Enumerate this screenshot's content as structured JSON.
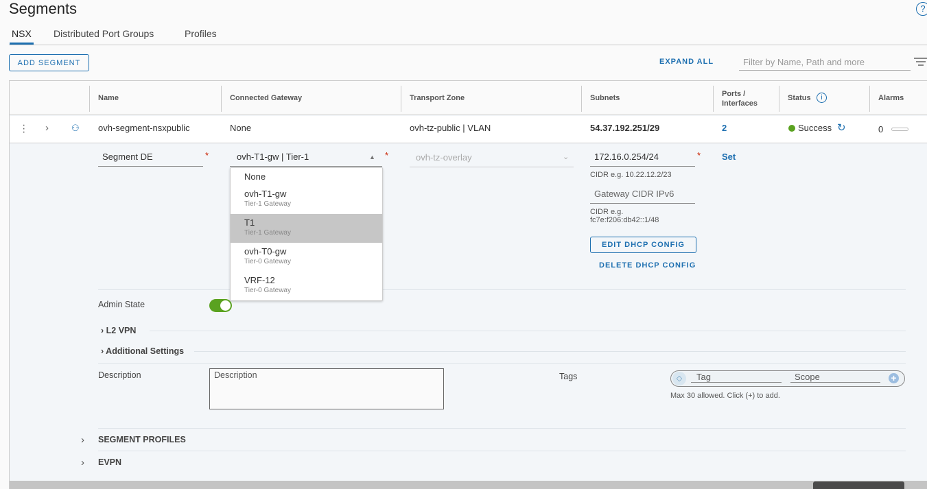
{
  "page": {
    "title": "Segments",
    "help_icon": "help-circle-icon"
  },
  "tabs": [
    {
      "label": "NSX",
      "active": true
    },
    {
      "label": "Distributed Port Groups"
    },
    {
      "label": "Profiles"
    }
  ],
  "toolbar": {
    "add_segment": "ADD SEGMENT",
    "expand_all": "EXPAND ALL",
    "filter_placeholder": "Filter by Name, Path and more"
  },
  "table": {
    "columns": [
      "Name",
      "Connected Gateway",
      "Transport Zone",
      "Subnets",
      "Ports / Interfaces",
      "Status",
      "Alarms"
    ],
    "rows": [
      {
        "name": "ovh-segment-nsxpublic",
        "gateway": "None",
        "transport_zone": "ovh-tz-public | VLAN",
        "subnets": "54.37.192.251/29",
        "ports": "2",
        "status": "Success",
        "alarms": "0"
      }
    ]
  },
  "edit": {
    "name": "Segment DE",
    "gateway": "ovh-T1-gw | Tier-1",
    "transport_zone_placeholder": "ovh-tz-overlay",
    "subnet": "172.16.0.254/24",
    "subnet_hint": "CIDR e.g. 10.22.12.2/23",
    "ipv6_placeholder": "Gateway CIDR IPv6",
    "ipv6_hint_1": "CIDR e.g.",
    "ipv6_hint_2": "fc7e:f206:db42::1/48",
    "edit_dhcp": "EDIT DHCP CONFIG",
    "delete_dhcp": "DELETE DHCP CONFIG",
    "set": "Set",
    "required": "*",
    "admin_state_label": "Admin State",
    "admin_state": true,
    "l2vpn": "L2 VPN",
    "additional": "Additional Settings",
    "description_label": "Description",
    "description_placeholder": "Description",
    "tags_label": "Tags",
    "tag_placeholder": "Tag",
    "scope_placeholder": "Scope",
    "tags_hint": "Max 30 allowed. Click (+) to add.",
    "segment_profiles": "SEGMENT PROFILES",
    "evpn": "EVPN"
  },
  "dropdown": {
    "options": [
      {
        "name": "None",
        "type": ""
      },
      {
        "name": "ovh-T1-gw",
        "type": "Tier-1 Gateway"
      },
      {
        "name": "T1",
        "type": "Tier-1 Gateway",
        "highlighted": true
      },
      {
        "name": "ovh-T0-gw",
        "type": "Tier-0 Gateway"
      },
      {
        "name": "VRF-12",
        "type": "Tier-0 Gateway"
      }
    ]
  },
  "colors": {
    "accent": "#1d6fb0",
    "success": "#5aa220",
    "required": "#c92100",
    "highlight": "#c6c6c6"
  }
}
